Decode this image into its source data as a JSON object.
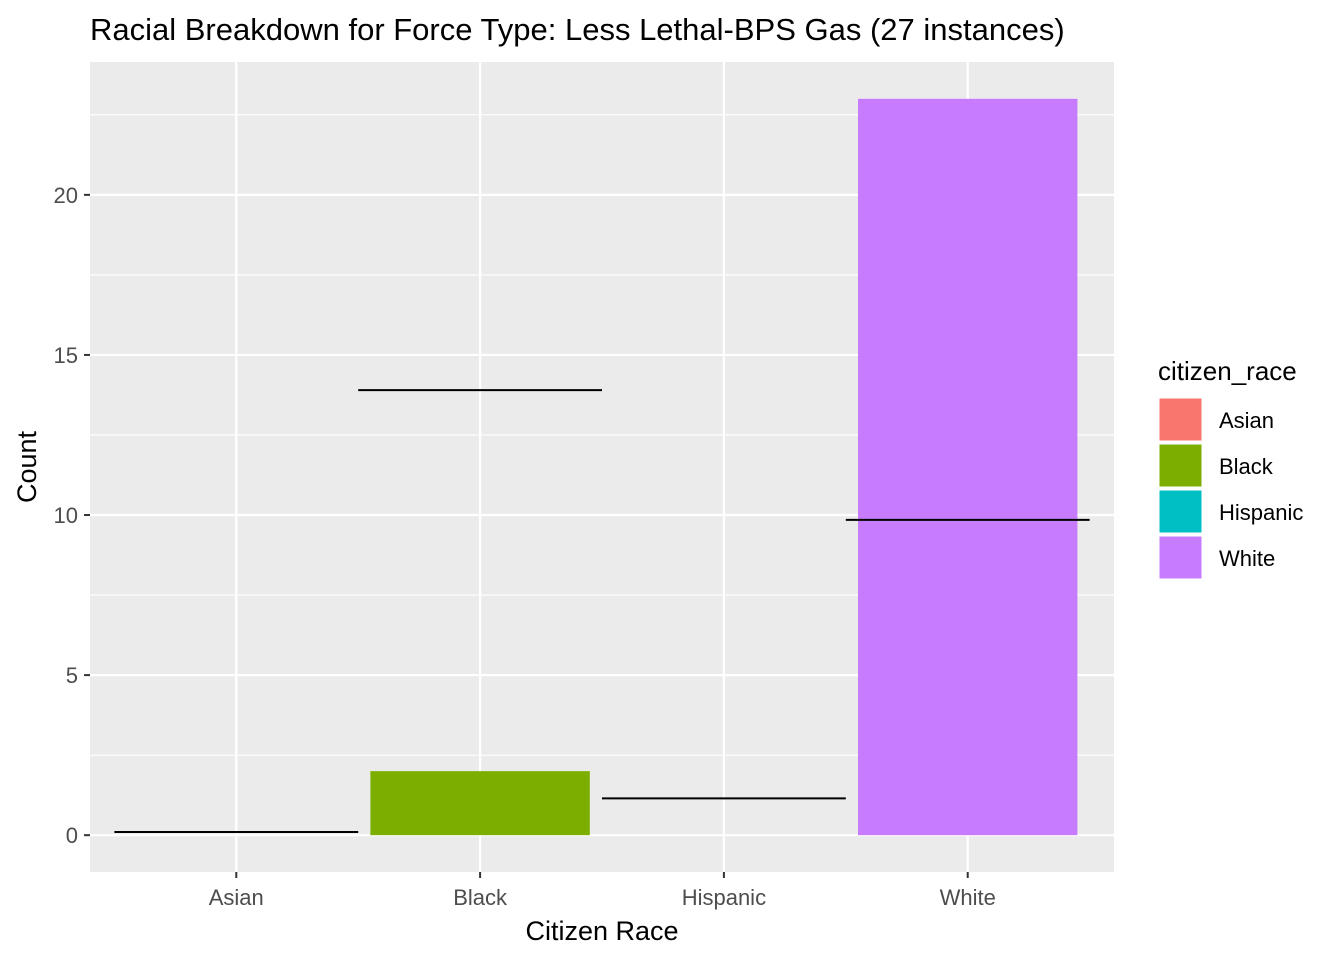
{
  "chart_data": {
    "type": "bar",
    "title": "Racial Breakdown for Force Type: Less Lethal-BPS Gas (27 instances)",
    "xlabel": "Citizen Race",
    "ylabel": "Count",
    "categories": [
      "Asian",
      "Black",
      "Hispanic",
      "White"
    ],
    "values": [
      0,
      2,
      0,
      23
    ],
    "colors": [
      "#F8766D",
      "#7CAE00",
      "#00BFC4",
      "#C77CFF"
    ],
    "reference_lines": [
      0.1,
      13.9,
      1.15,
      9.85
    ],
    "ylim": [
      -1.15,
      24.15
    ],
    "yticks": [
      0,
      5,
      10,
      15,
      20
    ],
    "ytick_labels": [
      "0",
      "5",
      "10",
      "15",
      "20"
    ],
    "yminor": [
      2.5,
      7.5,
      12.5,
      17.5,
      22.5
    ],
    "grid": true,
    "legend": {
      "title": "citizen_race",
      "position": "right",
      "entries": [
        "Asian",
        "Black",
        "Hispanic",
        "White"
      ]
    }
  }
}
